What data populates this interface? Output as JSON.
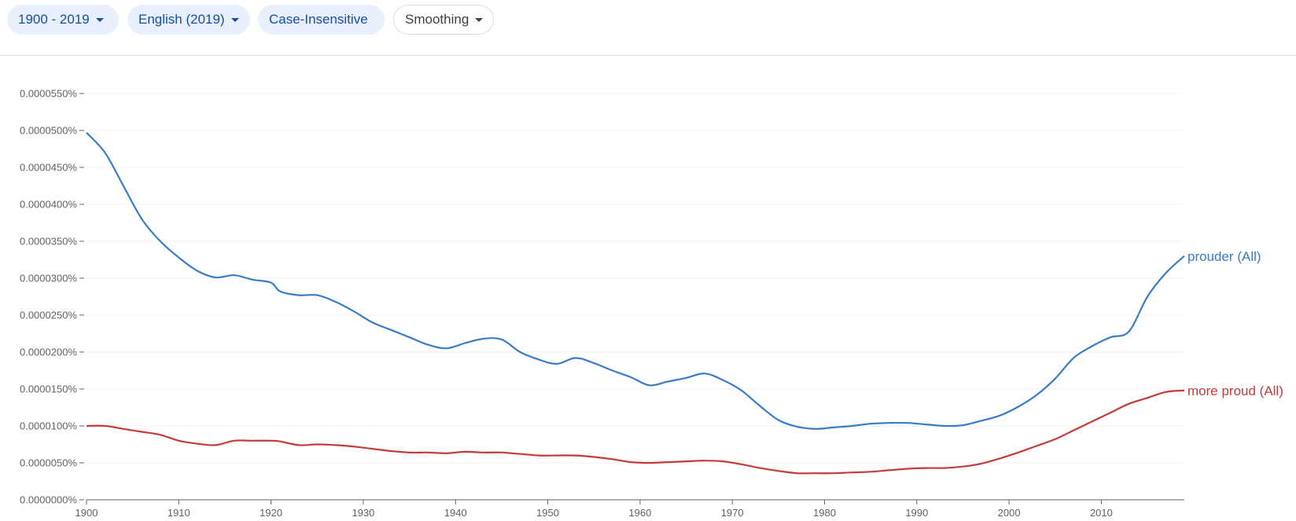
{
  "toolbar": {
    "range_label": "1900 - 2019",
    "corpus_label": "English (2019)",
    "case_label": "Case-Insensitive",
    "smoothing_label": "Smoothing"
  },
  "chart_data": {
    "type": "line",
    "title": "",
    "xlabel": "",
    "ylabel": "",
    "xlim": [
      1900,
      2019
    ],
    "ylim": [
      0,
      5.5e-05
    ],
    "grid": true,
    "legend": "right-edge labels",
    "x_ticks": [
      1900,
      1910,
      1920,
      1930,
      1940,
      1950,
      1960,
      1970,
      1980,
      1990,
      2000,
      2010
    ],
    "y_ticks": [
      "0.0000000%",
      "0.0000050%",
      "0.0000100%",
      "0.0000150%",
      "0.0000200%",
      "0.0000250%",
      "0.0000300%",
      "0.0000350%",
      "0.0000400%",
      "0.0000450%",
      "0.0000500%",
      "0.0000550%"
    ],
    "x": [
      1900,
      1902,
      1904,
      1906,
      1908,
      1910,
      1912,
      1914,
      1916,
      1918,
      1920,
      1921,
      1923,
      1925,
      1927,
      1929,
      1931,
      1933,
      1935,
      1937,
      1939,
      1941,
      1943,
      1945,
      1947,
      1949,
      1951,
      1953,
      1955,
      1957,
      1959,
      1961,
      1963,
      1965,
      1967,
      1969,
      1971,
      1973,
      1975,
      1977,
      1979,
      1981,
      1983,
      1985,
      1987,
      1989,
      1991,
      1993,
      1995,
      1997,
      1999,
      2001,
      2003,
      2005,
      2007,
      2009,
      2011,
      2013,
      2015,
      2017,
      2019
    ],
    "series": [
      {
        "name": "prouder (All)",
        "color": "#3a7bc8",
        "values": [
          4.97,
          4.7,
          4.25,
          3.8,
          3.5,
          3.28,
          3.1,
          3.01,
          3.04,
          2.98,
          2.94,
          2.82,
          2.77,
          2.77,
          2.68,
          2.55,
          2.4,
          2.3,
          2.2,
          2.1,
          2.05,
          2.12,
          2.18,
          2.17,
          2.0,
          1.9,
          1.84,
          1.92,
          1.85,
          1.75,
          1.66,
          1.55,
          1.6,
          1.65,
          1.71,
          1.62,
          1.48,
          1.27,
          1.08,
          0.99,
          0.96,
          0.98,
          1.0,
          1.03,
          1.04,
          1.04,
          1.02,
          1.0,
          1.01,
          1.07,
          1.14,
          1.26,
          1.42,
          1.64,
          1.92,
          2.08,
          2.2,
          2.28,
          2.75,
          3.07,
          3.3
        ]
      },
      {
        "name": "more proud (All)",
        "color": "#c43b3b",
        "values": [
          1.0,
          1.0,
          0.96,
          0.92,
          0.88,
          0.8,
          0.76,
          0.74,
          0.8,
          0.8,
          0.8,
          0.79,
          0.74,
          0.75,
          0.74,
          0.72,
          0.69,
          0.66,
          0.64,
          0.64,
          0.63,
          0.65,
          0.64,
          0.64,
          0.62,
          0.6,
          0.6,
          0.6,
          0.58,
          0.55,
          0.51,
          0.5,
          0.51,
          0.52,
          0.53,
          0.52,
          0.48,
          0.43,
          0.39,
          0.36,
          0.36,
          0.36,
          0.37,
          0.38,
          0.4,
          0.42,
          0.43,
          0.43,
          0.45,
          0.49,
          0.56,
          0.64,
          0.73,
          0.82,
          0.94,
          1.06,
          1.18,
          1.3,
          1.38,
          1.46,
          1.48
        ]
      }
    ],
    "values_scale_note": "values listed in units of 1e-5 percent"
  }
}
